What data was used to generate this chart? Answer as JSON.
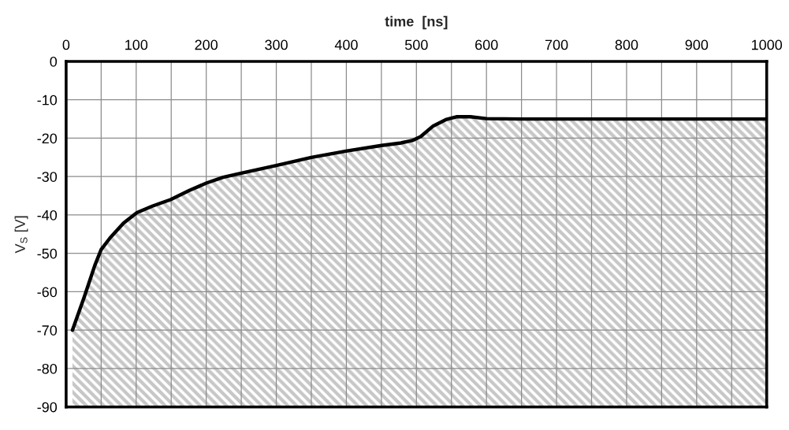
{
  "chart_data": {
    "type": "line",
    "xlabel": "time  [ns]",
    "ylabel": "V$_{S}$ [V]",
    "x": [
      9,
      26,
      41,
      50,
      63,
      82,
      101,
      123,
      149,
      176,
      200,
      224,
      250,
      300,
      350,
      401,
      450,
      476,
      494,
      506,
      524,
      543,
      558,
      577,
      600,
      650,
      700,
      800,
      900,
      1000
    ],
    "series": [
      {
        "color": "#000000",
        "values": [
          -70,
          -61.3,
          -53.1,
          -49,
          -45.9,
          -42.1,
          -39.4,
          -37.7,
          -36,
          -33.6,
          -31.7,
          -30.2,
          -29.1,
          -27.1,
          -25,
          -23.3,
          -21.9,
          -21.3,
          -20.6,
          -19.6,
          -16.8,
          -15.1,
          -14.4,
          -14.4,
          -14.9,
          -15,
          -15,
          -15,
          -15,
          -15
        ],
        "lower": [
          -90,
          -90,
          -90,
          -90,
          -90,
          -90,
          -90,
          -90,
          -90,
          -90,
          -90,
          -90,
          -90,
          -90,
          -90,
          -90,
          -90,
          -90,
          -90,
          -90,
          -90,
          -90,
          -90,
          -90,
          -90,
          -90,
          -90,
          -90,
          -90,
          -90
        ],
        "upper": [
          -70,
          -61.3,
          -53.1,
          -49,
          -45.9,
          -42.1,
          -39.4,
          -37.7,
          -36,
          -33.6,
          -31.7,
          -30.2,
          -29.1,
          -27.1,
          -25,
          -23.3,
          -21.9,
          -21.3,
          -20.6,
          -19.6,
          -16.8,
          -15.1,
          -14.4,
          -14.4,
          -14.9,
          -15,
          -15,
          -15,
          -15,
          -15
        ]
      }
    ],
    "xlim": [
      0,
      1000
    ],
    "xticks": [
      0,
      {
        "value": 50,
        "label": null
      },
      100,
      {
        "value": 150,
        "label": null
      },
      200,
      {
        "value": 250,
        "label": null
      },
      300,
      {
        "value": 350,
        "label": null
      },
      400,
      {
        "value": 450,
        "label": null
      },
      500,
      {
        "value": 550,
        "label": null
      },
      600,
      {
        "value": 650,
        "label": null
      },
      700,
      {
        "value": 750,
        "label": null
      },
      800,
      {
        "value": 850,
        "label": null
      },
      900,
      {
        "value": 950,
        "label": null
      },
      1000
    ],
    "ylim": [
      -90,
      0
    ],
    "yticks": [
      -90,
      -80,
      -70,
      -60,
      -50,
      -40,
      -30,
      -20,
      -10,
      0
    ],
    "grid": true,
    "legend": false
  }
}
